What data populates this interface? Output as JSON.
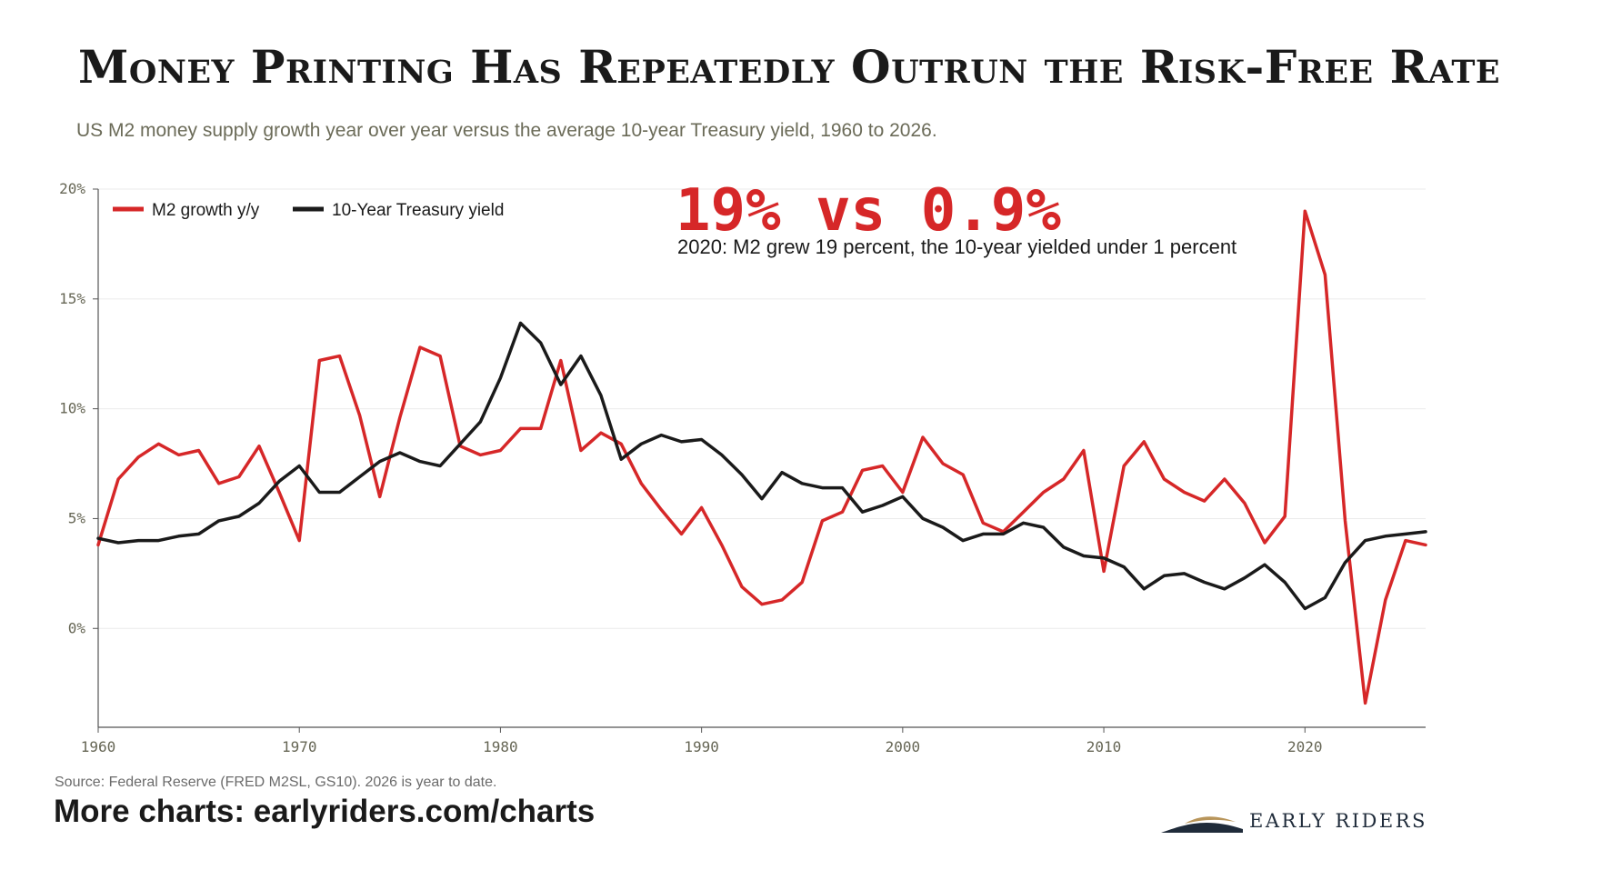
{
  "title": "Money Printing Has Repeatedly Outrun the Risk-Free Rate",
  "subtitle": "US M2 money supply growth year over year versus the average 10-year Treasury yield, 1960 to 2026.",
  "annotation": {
    "headline": "19% vs 0.9%",
    "detail": "2020: M2 grew 19 percent, the 10-year yielded under 1 percent"
  },
  "footer": {
    "source": "Source: Federal Reserve (FRED M2SL, GS10). 2026 is year to date.",
    "more": "More charts: earlyriders.com/charts",
    "logo_text": "EARLY RIDERS"
  },
  "colors": {
    "m2": "#d62728",
    "treasury": "#1a1a1a",
    "brand": "#1f2b3a",
    "brand_accent": "#b8955a"
  },
  "icons": {
    "logo": "early-riders-logo-icon"
  },
  "chart_data": {
    "type": "line",
    "x": [
      1960,
      1961,
      1962,
      1963,
      1964,
      1965,
      1966,
      1967,
      1968,
      1969,
      1970,
      1971,
      1972,
      1973,
      1974,
      1975,
      1976,
      1977,
      1978,
      1979,
      1980,
      1981,
      1982,
      1983,
      1984,
      1985,
      1986,
      1987,
      1988,
      1989,
      1990,
      1991,
      1992,
      1993,
      1994,
      1995,
      1996,
      1997,
      1998,
      1999,
      2000,
      2001,
      2002,
      2003,
      2004,
      2005,
      2006,
      2007,
      2008,
      2009,
      2010,
      2011,
      2012,
      2013,
      2014,
      2015,
      2016,
      2017,
      2018,
      2019,
      2020,
      2021,
      2022,
      2023,
      2024,
      2025,
      2026
    ],
    "xlim": [
      1960,
      2026
    ],
    "ylim": [
      -4.5,
      20
    ],
    "yticks": [
      0,
      5,
      10,
      15,
      20
    ],
    "ytick_labels": [
      "0%",
      "5%",
      "10%",
      "15%",
      "20%"
    ],
    "xticks": [
      1960,
      1970,
      1980,
      1990,
      2000,
      2010,
      2020
    ],
    "xtick_labels": [
      "1960",
      "1970",
      "1980",
      "1990",
      "2000",
      "2010",
      "2020"
    ],
    "grid": true,
    "legend_position": "top-left",
    "series": [
      {
        "name": "M2 growth y/y",
        "color": "#d62728",
        "values": [
          3.8,
          6.8,
          7.8,
          8.4,
          7.9,
          8.1,
          6.6,
          6.9,
          8.3,
          6.2,
          4.0,
          12.2,
          12.4,
          9.7,
          6.0,
          9.6,
          12.8,
          12.4,
          8.3,
          7.9,
          8.1,
          9.1,
          9.1,
          12.2,
          8.1,
          8.9,
          8.4,
          6.6,
          5.4,
          4.3,
          5.5,
          3.8,
          1.9,
          1.1,
          1.3,
          2.1,
          4.9,
          5.3,
          7.2,
          7.4,
          6.2,
          8.7,
          7.5,
          7.0,
          4.8,
          4.4,
          5.3,
          6.2,
          6.8,
          8.1,
          2.6,
          7.4,
          8.5,
          6.8,
          6.2,
          5.8,
          6.8,
          5.7,
          3.9,
          5.1,
          19.0,
          16.1,
          4.9,
          -3.4,
          1.3,
          4.0,
          3.8
        ]
      },
      {
        "name": "10-Year Treasury yield",
        "color": "#1a1a1a",
        "values": [
          4.1,
          3.9,
          4.0,
          4.0,
          4.2,
          4.3,
          4.9,
          5.1,
          5.7,
          6.7,
          7.4,
          6.2,
          6.2,
          6.9,
          7.6,
          8.0,
          7.6,
          7.4,
          8.4,
          9.4,
          11.4,
          13.9,
          13.0,
          11.1,
          12.4,
          10.6,
          7.7,
          8.4,
          8.8,
          8.5,
          8.6,
          7.9,
          7.0,
          5.9,
          7.1,
          6.6,
          6.4,
          6.4,
          5.3,
          5.6,
          6.0,
          5.0,
          4.6,
          4.0,
          4.3,
          4.3,
          4.8,
          4.6,
          3.7,
          3.3,
          3.2,
          2.8,
          1.8,
          2.4,
          2.5,
          2.1,
          1.8,
          2.3,
          2.9,
          2.1,
          0.9,
          1.4,
          3.0,
          4.0,
          4.2,
          4.3,
          4.4
        ]
      }
    ]
  }
}
